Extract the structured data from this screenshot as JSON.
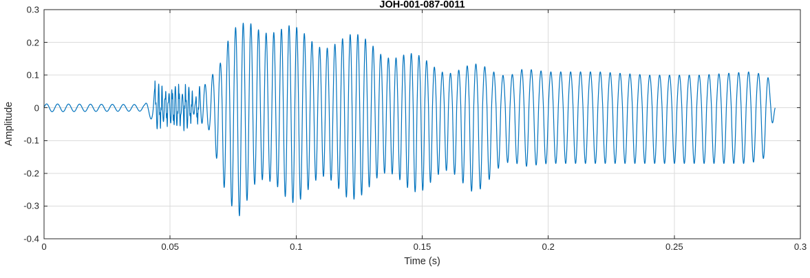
{
  "chart_data": {
    "type": "line",
    "title": "JOH-001-087-0011",
    "xlabel": "Time (s)",
    "ylabel": "Amplitude",
    "xlim": [
      0,
      0.3
    ],
    "ylim": [
      -0.4,
      0.3
    ],
    "xticks": {
      "values": [
        0,
        0.05,
        0.1,
        0.15,
        0.2,
        0.25,
        0.3
      ],
      "labels": [
        "0",
        "0.05",
        "0.1",
        "0.15",
        "0.2",
        "0.25",
        "0.3"
      ]
    },
    "yticks": {
      "values": [
        -0.4,
        -0.3,
        -0.2,
        -0.1,
        0,
        0.1,
        0.2,
        0.3
      ],
      "labels": [
        "-0.4",
        "-0.3",
        "-0.2",
        "-0.1",
        "0",
        "0.1",
        "0.2",
        "0.3"
      ]
    },
    "grid": true,
    "line_color": "#0072BD",
    "grid_color": "#dbdbdb",
    "axis_color": "#262626",
    "title_color": "#000000",
    "signal": {
      "description": "Waveform: quiet onset, high-frequency burst near 0.045 s, strong arrival peaking +0.28 / -0.31 near 0.08 s, decaying into sustained ~255 Hz coda ending at 0.29 s",
      "duration_s": 0.29,
      "sample_rate_hz": 16000,
      "envelope": {
        "t": [
          0.0,
          0.04,
          0.044,
          0.046,
          0.05,
          0.055,
          0.06,
          0.063,
          0.066,
          0.07,
          0.074,
          0.078,
          0.083,
          0.088,
          0.093,
          0.1,
          0.11,
          0.12,
          0.13,
          0.14,
          0.15,
          0.16,
          0.17,
          0.18,
          0.19,
          0.2,
          0.22,
          0.24,
          0.26,
          0.28,
          0.287,
          0.29
        ],
        "upper": [
          0.012,
          0.01,
          0.06,
          0.05,
          0.045,
          0.06,
          0.03,
          0.06,
          0.1,
          0.13,
          0.2,
          0.24,
          0.28,
          0.26,
          0.23,
          0.22,
          0.21,
          0.2,
          0.2,
          0.16,
          0.14,
          0.12,
          0.12,
          0.11,
          0.12,
          0.11,
          0.11,
          0.1,
          0.1,
          0.11,
          0.1,
          0.0
        ],
        "lower": [
          -0.012,
          -0.01,
          -0.05,
          -0.045,
          -0.04,
          -0.05,
          -0.03,
          -0.05,
          -0.08,
          -0.2,
          -0.26,
          -0.31,
          -0.26,
          -0.25,
          -0.24,
          -0.26,
          -0.24,
          -0.25,
          -0.24,
          -0.22,
          -0.23,
          -0.22,
          -0.23,
          -0.2,
          -0.18,
          -0.17,
          -0.17,
          -0.17,
          -0.17,
          -0.17,
          -0.15,
          0.0
        ]
      },
      "frequency": {
        "t": [
          0.0,
          0.043,
          0.045,
          0.06,
          0.064,
          0.15,
          0.175,
          0.2,
          0.29
        ],
        "hz": [
          230,
          230,
          750,
          750,
          330,
          330,
          280,
          255,
          255
        ]
      },
      "modulation": {
        "start_s": 0.065,
        "end_s": 0.19,
        "freq_hz": 41,
        "depth": 0.13
      },
      "burst": {
        "start_s": 0.044,
        "end_s": 0.062,
        "freq_hz": 1750,
        "mix": 0.4
      }
    }
  }
}
